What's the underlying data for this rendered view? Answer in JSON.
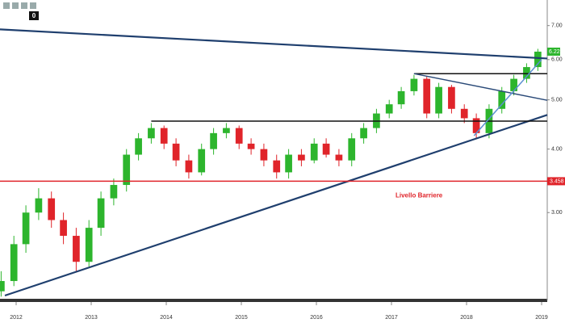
{
  "toolbar_counter": "0",
  "chart_data": {
    "type": "candlestick",
    "log_scale": true,
    "x": [
      2011.8,
      2011.97,
      2012.13,
      2012.3,
      2012.47,
      2012.63,
      2012.8,
      2012.97,
      2013.13,
      2013.3,
      2013.47,
      2013.63,
      2013.8,
      2013.97,
      2014.13,
      2014.3,
      2014.47,
      2014.63,
      2014.8,
      2014.97,
      2015.13,
      2015.3,
      2015.47,
      2015.63,
      2015.8,
      2015.97,
      2016.13,
      2016.3,
      2016.47,
      2016.63,
      2016.8,
      2016.97,
      2017.13,
      2017.3,
      2017.47,
      2017.63,
      2017.8,
      2017.97,
      2018.13,
      2018.3,
      2018.47,
      2018.63,
      2018.8,
      2018.95
    ],
    "open": [
      2.1,
      2.2,
      2.6,
      3.0,
      3.2,
      2.9,
      2.7,
      2.4,
      2.8,
      3.2,
      3.4,
      3.9,
      4.2,
      4.4,
      4.1,
      3.8,
      3.6,
      4.0,
      4.3,
      4.4,
      4.1,
      4.0,
      3.8,
      3.6,
      3.9,
      3.8,
      4.1,
      3.9,
      3.8,
      4.2,
      4.4,
      4.7,
      4.9,
      5.2,
      5.5,
      4.7,
      5.3,
      4.8,
      4.6,
      4.3,
      4.8,
      5.2,
      5.5,
      5.8
    ],
    "high": [
      2.3,
      2.7,
      3.1,
      3.35,
      3.3,
      3.0,
      2.8,
      2.9,
      3.3,
      3.5,
      4.0,
      4.3,
      4.5,
      4.45,
      4.2,
      3.9,
      4.1,
      4.4,
      4.5,
      4.45,
      4.2,
      4.1,
      3.9,
      4.0,
      4.0,
      4.2,
      4.2,
      4.0,
      4.3,
      4.5,
      4.8,
      5.0,
      5.3,
      5.6,
      5.55,
      5.4,
      5.35,
      4.9,
      4.7,
      4.9,
      5.3,
      5.6,
      5.9,
      6.3
    ],
    "low": [
      2.05,
      2.15,
      2.5,
      2.9,
      2.8,
      2.6,
      2.3,
      2.35,
      2.7,
      3.1,
      3.3,
      3.8,
      4.1,
      4.0,
      3.7,
      3.5,
      3.55,
      3.9,
      4.2,
      4.0,
      3.9,
      3.7,
      3.5,
      3.5,
      3.7,
      3.75,
      3.85,
      3.7,
      3.7,
      4.1,
      4.3,
      4.6,
      4.8,
      5.1,
      4.6,
      4.6,
      4.7,
      4.5,
      4.2,
      4.2,
      4.7,
      5.1,
      5.4,
      5.7
    ],
    "close": [
      2.2,
      2.6,
      3.0,
      3.2,
      2.9,
      2.7,
      2.4,
      2.8,
      3.2,
      3.4,
      3.9,
      4.2,
      4.4,
      4.1,
      3.8,
      3.6,
      4.0,
      4.3,
      4.4,
      4.1,
      4.0,
      3.8,
      3.6,
      3.9,
      3.8,
      4.1,
      3.9,
      3.8,
      4.2,
      4.4,
      4.7,
      4.9,
      5.2,
      5.5,
      4.7,
      5.3,
      4.8,
      4.6,
      4.3,
      4.8,
      5.2,
      5.5,
      5.8,
      6.22
    ],
    "up_color": "#2db52d",
    "down_color": "#e0242a",
    "xlim": [
      2011.785,
      2019.075
    ],
    "xticks": [
      2012,
      2013,
      2014,
      2015,
      2016,
      2017,
      2018,
      2019
    ],
    "ylim": [
      2.03,
      7.86
    ],
    "yticks": [
      {
        "value": 3,
        "label": "3.00"
      },
      {
        "value": 4,
        "label": "4.00"
      },
      {
        "value": 5,
        "label": "5.00"
      },
      {
        "value": 6,
        "label": "6.00"
      },
      {
        "value": 7,
        "label": "7.00"
      }
    ],
    "last_price": 6.22,
    "barrier": {
      "value": 3.458,
      "color": "#e0242a",
      "annotation": "Livello Barriere"
    },
    "trendlines": [
      {
        "x": [
          2011.785,
          2019.075
        ],
        "y": [
          6.88,
          6.03
        ],
        "color": "#1f3f6e"
      },
      {
        "x": [
          2011.85,
          2019.075
        ],
        "y": [
          2.06,
          4.67
        ],
        "color": "#1f3f6e"
      },
      {
        "x": [
          2013.8,
          2019.075
        ],
        "y": [
          4.54,
          4.54
        ],
        "color": "#111111"
      },
      {
        "x": [
          2017.3,
          2019.075
        ],
        "y": [
          5.63,
          5.63
        ],
        "color": "#111111"
      },
      {
        "x": [
          2017.3,
          2019.075
        ],
        "y": [
          5.63,
          4.99
        ],
        "color": "#2a4a78"
      },
      {
        "x": [
          2018.1,
          2019.0
        ],
        "y": [
          4.25,
          6.0
        ],
        "color": "#5b8fd0"
      }
    ]
  }
}
